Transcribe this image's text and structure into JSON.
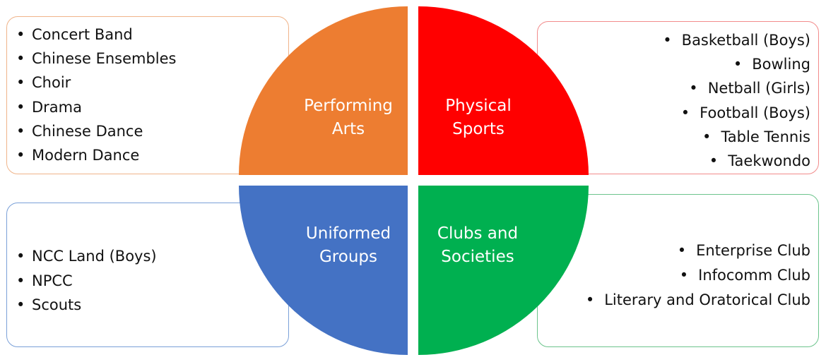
{
  "segments": {
    "performing_arts": {
      "label_line1": "Performing",
      "label_line2": "Arts",
      "color": "#ED7D31",
      "items": [
        "Concert Band",
        "Chinese Ensembles",
        "Choir",
        "Drama",
        "Chinese Dance",
        "Modern Dance"
      ]
    },
    "physical_sports": {
      "label_line1": "Physical",
      "label_line2": "Sports",
      "color": "#FF0000",
      "items": [
        "Basketball (Boys)",
        "Bowling",
        "Netball (Girls)",
        "Football (Boys)",
        "Table Tennis",
        "Taekwondo"
      ]
    },
    "uniformed_groups": {
      "label_line1": "Uniformed",
      "label_line2": "Groups",
      "color": "#4472C4",
      "items": [
        "NCC Land (Boys)",
        "NPCC",
        "Scouts"
      ]
    },
    "clubs_societies": {
      "label_line1": "Clubs and",
      "label_line2": "Societies",
      "color": "#00B050",
      "items": [
        "Enterprise Club",
        "Infocomm Club",
        "Literary and Oratorical Club"
      ]
    }
  }
}
